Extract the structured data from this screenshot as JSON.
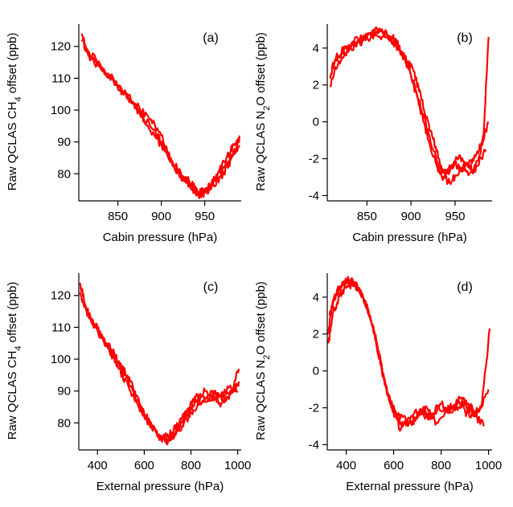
{
  "colors": {
    "series": "#ff0000",
    "axis": "#000000"
  },
  "chart_data": [
    {
      "type": "line",
      "panel_label": "(a)",
      "xlabel": "Cabin pressure (hPa)",
      "ylabel": "Raw QCLAS CH4 offset (ppb)",
      "xlim": [
        805,
        992
      ],
      "ylim": [
        72,
        127
      ],
      "xticks": [
        850,
        900,
        950
      ],
      "yticks": [
        80,
        90,
        100,
        110,
        120
      ],
      "series": [
        {
          "x": [
            808,
            815,
            825,
            840,
            855,
            870,
            885,
            900,
            912,
            925,
            935,
            943,
            950,
            958,
            968,
            978,
            985,
            990
          ],
          "values": [
            124,
            118,
            116,
            111,
            106,
            102,
            98,
            92,
            84,
            79,
            77,
            73,
            74,
            76,
            79,
            83,
            87,
            92
          ]
        },
        {
          "x": [
            808,
            818,
            830,
            845,
            860,
            875,
            890,
            905,
            915,
            928,
            938,
            948,
            956,
            965,
            975,
            983,
            990
          ],
          "values": [
            122,
            117,
            114,
            109,
            104,
            99,
            94,
            88,
            82,
            78,
            75,
            74,
            76,
            80,
            85,
            89,
            91
          ]
        },
        {
          "x": [
            810,
            820,
            835,
            850,
            865,
            880,
            895,
            908,
            920,
            932,
            942,
            952,
            962,
            972,
            982,
            990
          ],
          "values": [
            120,
            116,
            112,
            107,
            103,
            97,
            91,
            85,
            80,
            76,
            74,
            75,
            78,
            82,
            86,
            89
          ]
        }
      ]
    },
    {
      "type": "line",
      "panel_label": "(b)",
      "xlabel": "Cabin pressure (hPa)",
      "ylabel": "Raw QCLAS N2O offset (ppb)",
      "xlim": [
        805,
        992
      ],
      "ylim": [
        -4.2,
        5.3
      ],
      "xticks": [
        850,
        900,
        950
      ],
      "yticks": [
        -4,
        -2,
        0,
        2,
        4
      ],
      "series": [
        {
          "x": [
            808,
            815,
            825,
            840,
            855,
            870,
            880,
            890,
            900,
            910,
            920,
            930,
            940,
            950,
            960,
            970,
            980,
            988
          ],
          "values": [
            2.5,
            3.5,
            4.0,
            4.5,
            4.8,
            4.9,
            4.3,
            3.8,
            2.5,
            0.8,
            -1.0,
            -2.5,
            -2.8,
            -2.3,
            -2.6,
            -2.0,
            -1.2,
            0.0
          ]
        },
        {
          "x": [
            808,
            818,
            830,
            845,
            860,
            875,
            885,
            895,
            905,
            915,
            925,
            935,
            945,
            955,
            965,
            975,
            985
          ],
          "values": [
            2.0,
            3.3,
            3.9,
            4.4,
            4.7,
            4.6,
            4.0,
            3.2,
            1.8,
            0.2,
            -1.5,
            -3.0,
            -2.5,
            -1.8,
            -2.9,
            -2.4,
            -1.5
          ]
        },
        {
          "x": [
            810,
            822,
            835,
            850,
            862,
            872,
            882,
            892,
            902,
            912,
            922,
            932,
            942,
            952,
            962,
            972,
            982,
            988
          ],
          "values": [
            3.0,
            3.8,
            4.2,
            4.6,
            5.0,
            4.8,
            4.5,
            3.5,
            2.9,
            1.2,
            -0.5,
            -2.0,
            -3.3,
            -2.9,
            -2.2,
            -2.7,
            -1.0,
            4.6
          ]
        }
      ]
    },
    {
      "type": "line",
      "panel_label": "(c)",
      "xlabel": "External pressure (hPa)",
      "ylabel": "Raw QCLAS CH4 offset (ppb)",
      "xlim": [
        320,
        1015
      ],
      "ylim": [
        72,
        127
      ],
      "xticks": [
        400,
        600,
        800,
        1000
      ],
      "yticks": [
        80,
        90,
        100,
        110,
        120
      ],
      "series": [
        {
          "x": [
            325,
            350,
            380,
            420,
            460,
            500,
            540,
            580,
            620,
            660,
            700,
            740,
            780,
            820,
            860,
            900,
            940,
            980,
            1005
          ],
          "values": [
            124,
            116,
            112,
            107,
            103,
            98,
            93,
            86,
            80,
            76,
            74,
            78,
            83,
            88,
            90,
            89,
            88,
            90,
            93
          ]
        },
        {
          "x": [
            325,
            360,
            400,
            440,
            480,
            520,
            560,
            600,
            640,
            680,
            720,
            760,
            800,
            840,
            880,
            920,
            960,
            1000
          ],
          "values": [
            121,
            114,
            109,
            104,
            100,
            95,
            89,
            83,
            78,
            75,
            77,
            81,
            85,
            88,
            87,
            89,
            91,
            90
          ]
        },
        {
          "x": [
            330,
            370,
            410,
            450,
            490,
            530,
            570,
            610,
            650,
            690,
            730,
            770,
            810,
            850,
            890,
            930,
            970,
            1005
          ],
          "values": [
            119,
            113,
            108,
            103,
            97,
            92,
            86,
            81,
            77,
            74,
            76,
            80,
            84,
            87,
            88,
            86,
            89,
            97
          ]
        }
      ]
    },
    {
      "type": "line",
      "panel_label": "(d)",
      "xlabel": "External pressure (hPa)",
      "ylabel": "Raw QCLAS N2O offset (ppb)",
      "xlim": [
        320,
        1015
      ],
      "ylim": [
        -4.2,
        5.3
      ],
      "xticks": [
        400,
        600,
        800,
        1000
      ],
      "yticks": [
        -4,
        -2,
        0,
        2,
        4
      ],
      "series": [
        {
          "x": [
            325,
            340,
            360,
            390,
            420,
            450,
            480,
            510,
            540,
            570,
            600,
            640,
            680,
            720,
            760,
            800,
            850,
            900,
            950,
            1000
          ],
          "values": [
            2.0,
            3.5,
            4.3,
            4.7,
            4.9,
            4.5,
            3.8,
            2.5,
            0.8,
            -1.0,
            -2.2,
            -2.5,
            -2.8,
            -2.3,
            -2.6,
            -1.8,
            -2.2,
            -1.6,
            -2.4,
            -1.0
          ]
        },
        {
          "x": [
            325,
            345,
            370,
            400,
            430,
            460,
            490,
            520,
            550,
            580,
            620,
            660,
            700,
            740,
            780,
            820,
            870,
            920,
            970,
            1005
          ],
          "values": [
            1.5,
            3.2,
            4.0,
            4.5,
            4.8,
            4.2,
            3.3,
            2.0,
            0.0,
            -1.5,
            -2.6,
            -3.0,
            -2.4,
            -2.0,
            -2.8,
            -2.1,
            -1.7,
            -2.5,
            -2.0,
            2.3
          ]
        },
        {
          "x": [
            330,
            350,
            380,
            410,
            440,
            470,
            500,
            530,
            560,
            590,
            630,
            670,
            710,
            750,
            790,
            830,
            880,
            930,
            980
          ],
          "values": [
            3.0,
            4.0,
            4.6,
            5.0,
            4.7,
            4.0,
            3.0,
            1.5,
            -0.5,
            -2.0,
            -3.2,
            -2.6,
            -2.1,
            -2.5,
            -1.9,
            -2.3,
            -1.5,
            -2.2,
            -3.0
          ]
        }
      ]
    }
  ]
}
